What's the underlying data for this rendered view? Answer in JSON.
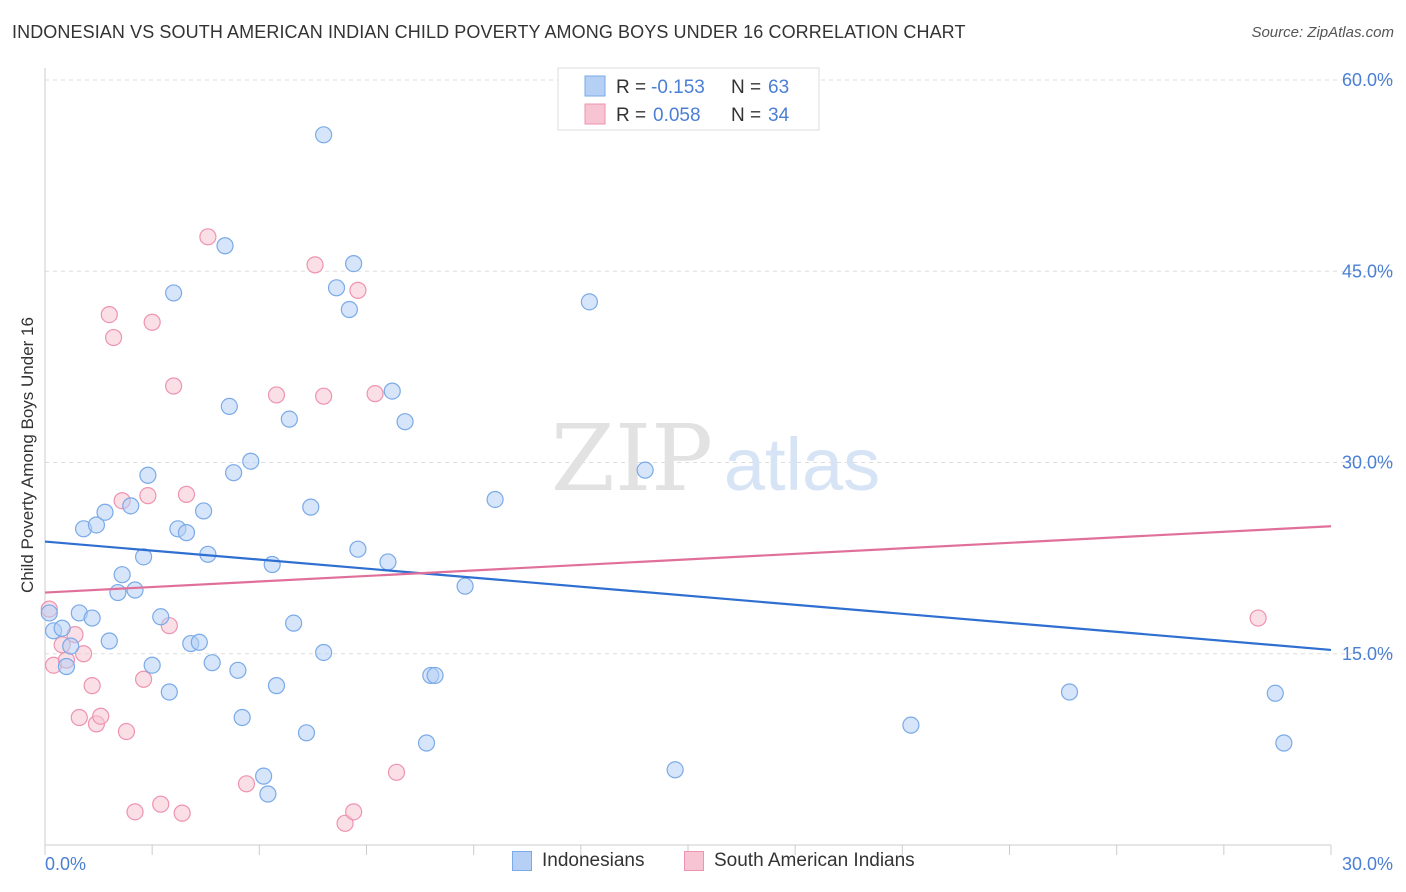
{
  "header": {
    "title": "INDONESIAN VS SOUTH AMERICAN INDIAN CHILD POVERTY AMONG BOYS UNDER 16 CORRELATION CHART",
    "source": "Source: ZipAtlas.com"
  },
  "watermark": {
    "zip": "ZIP",
    "atlas": "atlas"
  },
  "colors": {
    "blue_fill": "#b5d0f4",
    "blue_stroke": "#7aaae8",
    "blue_line": "#2e6fd1",
    "pink_fill": "#f7c4d4",
    "pink_stroke": "#ee93b0",
    "pink_line": "#e0709a",
    "axis_text": "#4a7fd4",
    "grid": "#dddddd"
  },
  "stats_legend": [
    {
      "r_label": "R =",
      "r_value": "-0.153",
      "n_label": "N =",
      "n_value": "63"
    },
    {
      "r_label": "R =",
      "r_value": "0.058",
      "n_label": "N =",
      "n_value": "34"
    }
  ],
  "chart_data": {
    "type": "scatter",
    "title": "INDONESIAN VS SOUTH AMERICAN INDIAN CHILD POVERTY AMONG BOYS UNDER 16 CORRELATION CHART",
    "xlabel": "",
    "ylabel": "Child Poverty Among Boys Under 16",
    "xlim": [
      0,
      30
    ],
    "ylim": [
      0,
      60
    ],
    "x_tick_labels": [
      "0.0%",
      "30.0%"
    ],
    "y_ticks": [
      15,
      30,
      45,
      60
    ],
    "y_tick_labels": [
      "15.0%",
      "30.0%",
      "45.0%",
      "60.0%"
    ],
    "legend_position": "bottom-center",
    "series": [
      {
        "name": "Indonesians",
        "color": "#b5d0f4",
        "trend": {
          "x": [
            0,
            30
          ],
          "y": [
            23.8,
            15.3
          ]
        },
        "points": [
          {
            "x": 0.1,
            "y": 18.2
          },
          {
            "x": 0.2,
            "y": 16.8
          },
          {
            "x": 0.4,
            "y": 17.0
          },
          {
            "x": 0.5,
            "y": 14.0
          },
          {
            "x": 0.6,
            "y": 15.6
          },
          {
            "x": 0.8,
            "y": 18.2
          },
          {
            "x": 0.9,
            "y": 24.8
          },
          {
            "x": 1.1,
            "y": 17.8
          },
          {
            "x": 1.2,
            "y": 25.1
          },
          {
            "x": 1.4,
            "y": 26.1
          },
          {
            "x": 1.5,
            "y": 16.0
          },
          {
            "x": 1.7,
            "y": 19.8
          },
          {
            "x": 1.8,
            "y": 21.2
          },
          {
            "x": 2.0,
            "y": 26.6
          },
          {
            "x": 2.1,
            "y": 20.0
          },
          {
            "x": 2.3,
            "y": 22.6
          },
          {
            "x": 2.4,
            "y": 29.0
          },
          {
            "x": 2.5,
            "y": 14.1
          },
          {
            "x": 2.7,
            "y": 17.9
          },
          {
            "x": 2.9,
            "y": 12.0
          },
          {
            "x": 3.0,
            "y": 43.3
          },
          {
            "x": 3.1,
            "y": 24.8
          },
          {
            "x": 3.3,
            "y": 24.5
          },
          {
            "x": 3.4,
            "y": 15.8
          },
          {
            "x": 3.6,
            "y": 15.9
          },
          {
            "x": 3.7,
            "y": 26.2
          },
          {
            "x": 3.8,
            "y": 22.8
          },
          {
            "x": 3.9,
            "y": 14.3
          },
          {
            "x": 4.2,
            "y": 47.0
          },
          {
            "x": 4.3,
            "y": 34.4
          },
          {
            "x": 4.4,
            "y": 29.2
          },
          {
            "x": 4.5,
            "y": 13.7
          },
          {
            "x": 4.6,
            "y": 10.0
          },
          {
            "x": 4.8,
            "y": 30.1
          },
          {
            "x": 5.1,
            "y": 5.4
          },
          {
            "x": 5.2,
            "y": 4.0
          },
          {
            "x": 5.3,
            "y": 22.0
          },
          {
            "x": 5.4,
            "y": 12.5
          },
          {
            "x": 5.7,
            "y": 33.4
          },
          {
            "x": 5.8,
            "y": 17.4
          },
          {
            "x": 6.1,
            "y": 8.8
          },
          {
            "x": 6.2,
            "y": 26.5
          },
          {
            "x": 6.5,
            "y": 55.7
          },
          {
            "x": 6.5,
            "y": 15.1
          },
          {
            "x": 6.8,
            "y": 43.7
          },
          {
            "x": 7.1,
            "y": 42.0
          },
          {
            "x": 7.2,
            "y": 45.6
          },
          {
            "x": 7.3,
            "y": 23.2
          },
          {
            "x": 8.0,
            "y": 22.2
          },
          {
            "x": 8.1,
            "y": 35.6
          },
          {
            "x": 8.4,
            "y": 33.2
          },
          {
            "x": 8.9,
            "y": 8.0
          },
          {
            "x": 9.0,
            "y": 13.3
          },
          {
            "x": 9.1,
            "y": 13.3
          },
          {
            "x": 9.8,
            "y": 20.3
          },
          {
            "x": 10.5,
            "y": 27.1
          },
          {
            "x": 12.7,
            "y": 42.6
          },
          {
            "x": 14.0,
            "y": 29.4
          },
          {
            "x": 14.7,
            "y": 5.9
          },
          {
            "x": 20.2,
            "y": 9.4
          },
          {
            "x": 23.9,
            "y": 12.0
          },
          {
            "x": 28.7,
            "y": 11.9
          },
          {
            "x": 28.9,
            "y": 8.0
          }
        ]
      },
      {
        "name": "South American Indians",
        "color": "#f7c4d4",
        "trend": {
          "x": [
            0,
            30
          ],
          "y": [
            19.8,
            25.0
          ]
        },
        "points": [
          {
            "x": 0.1,
            "y": 18.5
          },
          {
            "x": 0.2,
            "y": 14.1
          },
          {
            "x": 0.4,
            "y": 15.7
          },
          {
            "x": 0.5,
            "y": 14.5
          },
          {
            "x": 0.7,
            "y": 16.5
          },
          {
            "x": 0.8,
            "y": 10.0
          },
          {
            "x": 0.9,
            "y": 15.0
          },
          {
            "x": 1.1,
            "y": 12.5
          },
          {
            "x": 1.2,
            "y": 9.5
          },
          {
            "x": 1.3,
            "y": 10.1
          },
          {
            "x": 1.5,
            "y": 41.6
          },
          {
            "x": 1.6,
            "y": 39.8
          },
          {
            "x": 1.8,
            "y": 27.0
          },
          {
            "x": 1.9,
            "y": 8.9
          },
          {
            "x": 2.1,
            "y": 2.6
          },
          {
            "x": 2.3,
            "y": 13.0
          },
          {
            "x": 2.4,
            "y": 27.4
          },
          {
            "x": 2.5,
            "y": 41.0
          },
          {
            "x": 2.7,
            "y": 3.2
          },
          {
            "x": 2.9,
            "y": 17.2
          },
          {
            "x": 3.0,
            "y": 36.0
          },
          {
            "x": 3.2,
            "y": 2.5
          },
          {
            "x": 3.3,
            "y": 27.5
          },
          {
            "x": 3.8,
            "y": 47.7
          },
          {
            "x": 4.7,
            "y": 4.8
          },
          {
            "x": 5.4,
            "y": 35.3
          },
          {
            "x": 6.3,
            "y": 45.5
          },
          {
            "x": 6.5,
            "y": 35.2
          },
          {
            "x": 7.0,
            "y": 1.7
          },
          {
            "x": 7.2,
            "y": 2.6
          },
          {
            "x": 7.3,
            "y": 43.5
          },
          {
            "x": 7.7,
            "y": 35.4
          },
          {
            "x": 8.2,
            "y": 5.7
          },
          {
            "x": 28.3,
            "y": 17.8
          }
        ]
      }
    ]
  },
  "legend_bottom": [
    {
      "label": "Indonesians"
    },
    {
      "label": "South American Indians"
    }
  ]
}
